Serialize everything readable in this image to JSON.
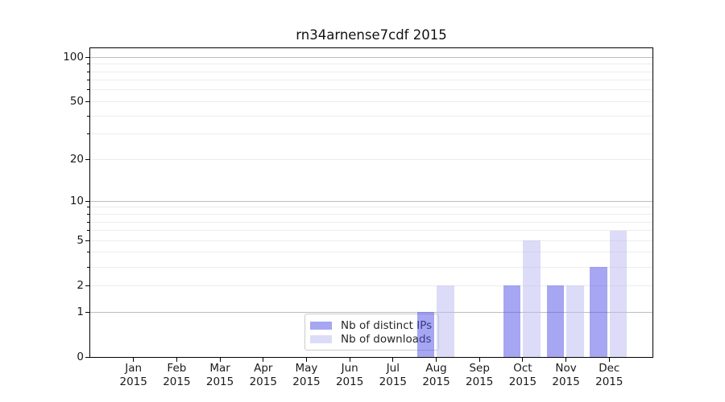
{
  "chart_data": {
    "type": "bar",
    "title": "rn34arnense7cdf 2015",
    "months": [
      "Jan",
      "Feb",
      "Mar",
      "Apr",
      "May",
      "Jun",
      "Jul",
      "Aug",
      "Sep",
      "Oct",
      "Nov",
      "Dec"
    ],
    "year": "2015",
    "series": [
      {
        "name": "Nb of distinct IPs",
        "color": "#4d4de5",
        "fill_alpha": 0.5,
        "values": [
          0,
          0,
          0,
          0,
          0,
          0,
          0,
          1,
          0,
          2,
          2,
          3
        ]
      },
      {
        "name": "Nb of downloads",
        "color": "#b9b9f1",
        "fill_alpha": 0.5,
        "values": [
          0,
          0,
          0,
          0,
          0,
          0,
          0,
          2,
          0,
          5,
          2,
          6
        ]
      }
    ],
    "y_axis": {
      "scale": "log1p",
      "ylim": [
        0,
        115
      ],
      "ticks": [
        0,
        1,
        2,
        5,
        10,
        20,
        50,
        100
      ],
      "major_gridlines": [
        1,
        10,
        100
      ],
      "minor_gridlines": [
        2,
        3,
        4,
        5,
        6,
        7,
        8,
        9,
        20,
        30,
        40,
        50,
        60,
        70,
        80,
        90
      ]
    },
    "legend_position": "lower center inside",
    "grid": "on",
    "colors": {
      "major_grid": "#bdbdbd",
      "minor_grid": "#ececec",
      "axis": "#000000",
      "text": "#1a1a1a"
    }
  }
}
